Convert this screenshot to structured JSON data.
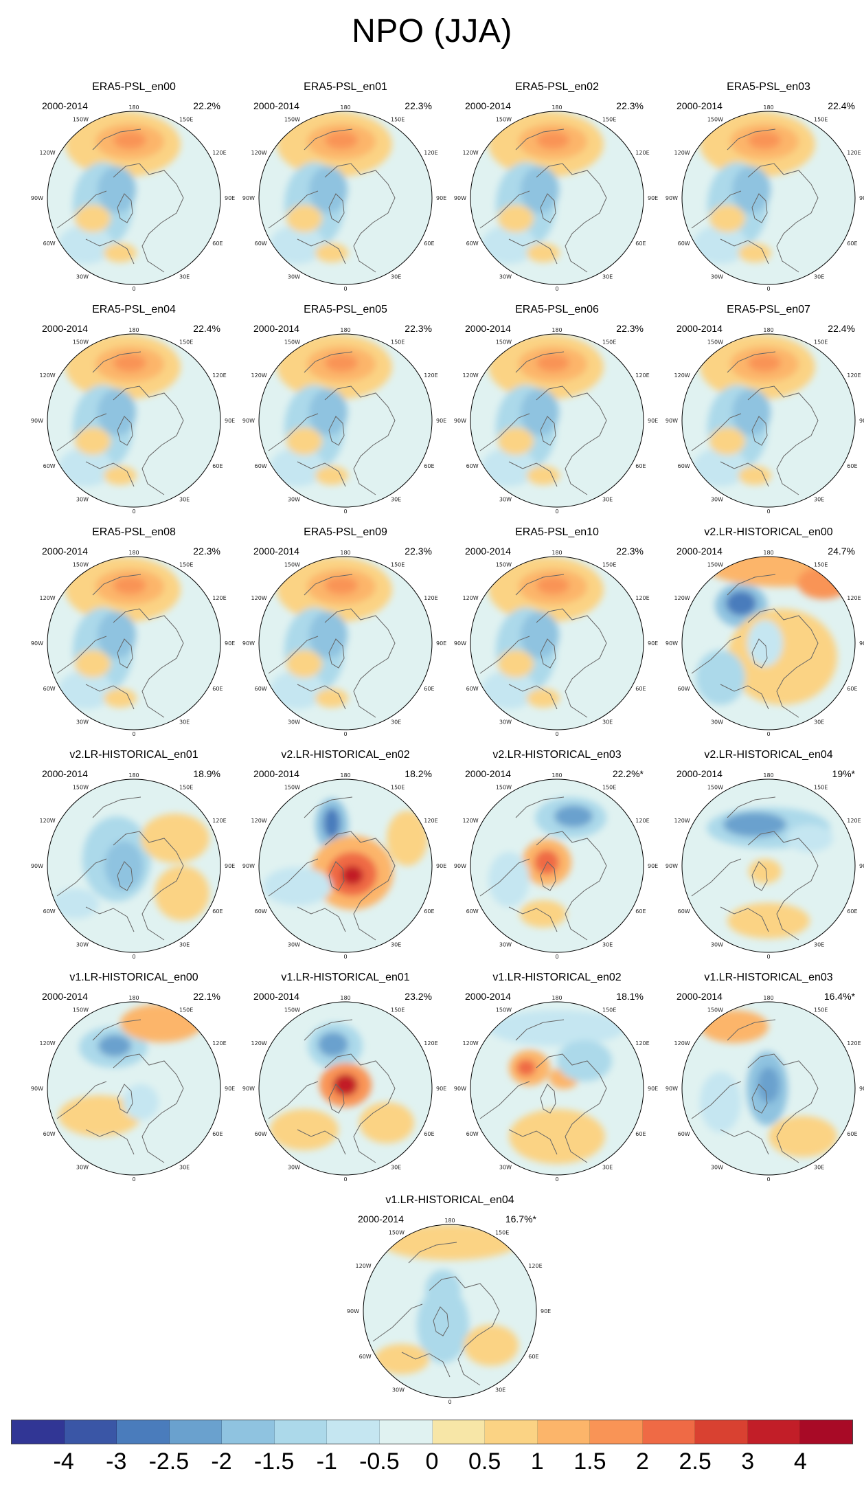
{
  "title": "NPO (JJA)",
  "period": "2000-2014",
  "longitude_labels": [
    "180",
    "150E",
    "120E",
    "90E",
    "60E",
    "30E",
    "0",
    "30W",
    "60W",
    "90W",
    "120W",
    "150W"
  ],
  "panels": [
    {
      "name": "ERA5-PSL_en00",
      "pct": "22.2%",
      "pattern": "era5"
    },
    {
      "name": "ERA5-PSL_en01",
      "pct": "22.3%",
      "pattern": "era5"
    },
    {
      "name": "ERA5-PSL_en02",
      "pct": "22.3%",
      "pattern": "era5"
    },
    {
      "name": "ERA5-PSL_en03",
      "pct": "22.4%",
      "pattern": "era5"
    },
    {
      "name": "ERA5-PSL_en04",
      "pct": "22.4%",
      "pattern": "era5"
    },
    {
      "name": "ERA5-PSL_en05",
      "pct": "22.3%",
      "pattern": "era5"
    },
    {
      "name": "ERA5-PSL_en06",
      "pct": "22.3%",
      "pattern": "era5"
    },
    {
      "name": "ERA5-PSL_en07",
      "pct": "22.4%",
      "pattern": "era5"
    },
    {
      "name": "ERA5-PSL_en08",
      "pct": "22.3%",
      "pattern": "era5"
    },
    {
      "name": "ERA5-PSL_en09",
      "pct": "22.3%",
      "pattern": "era5"
    },
    {
      "name": "ERA5-PSL_en10",
      "pct": "22.3%",
      "pattern": "era5"
    },
    {
      "name": "v2.LR-HISTORICAL_en00",
      "pct": "24.7%",
      "pattern": "v2en00"
    },
    {
      "name": "v2.LR-HISTORICAL_en01",
      "pct": "18.9%",
      "pattern": "v2en01"
    },
    {
      "name": "v2.LR-HISTORICAL_en02",
      "pct": "18.2%",
      "pattern": "v2en02"
    },
    {
      "name": "v2.LR-HISTORICAL_en03",
      "pct": "22.2%*",
      "pattern": "v2en03"
    },
    {
      "name": "v2.LR-HISTORICAL_en04",
      "pct": "19%*",
      "pattern": "v2en04"
    },
    {
      "name": "v1.LR-HISTORICAL_en00",
      "pct": "22.1%",
      "pattern": "v1en00"
    },
    {
      "name": "v1.LR-HISTORICAL_en01",
      "pct": "23.2%",
      "pattern": "v1en01"
    },
    {
      "name": "v1.LR-HISTORICAL_en02",
      "pct": "18.1%",
      "pattern": "v1en02"
    },
    {
      "name": "v1.LR-HISTORICAL_en03",
      "pct": "16.4%*",
      "pattern": "v1en03"
    },
    {
      "name": "v1.LR-HISTORICAL_en04",
      "pct": "16.7%*",
      "pattern": "v1en04"
    }
  ],
  "colorbar": {
    "colors": [
      "#313695",
      "#3a56a6",
      "#4a7cbc",
      "#6aa1ce",
      "#8fc3e0",
      "#acd9ea",
      "#c5e6f1",
      "#e0f2f1",
      "#f7e6a7",
      "#fbd384",
      "#fcb56a",
      "#f99456",
      "#ef6a45",
      "#d94131",
      "#c21e28",
      "#a80a26"
    ],
    "labels": [
      "-4",
      "-3",
      "-2.5",
      "-2",
      "-1.5",
      "-1",
      "-0.5",
      "0",
      "0.5",
      "1",
      "1.5",
      "2",
      "2.5",
      "3",
      "4"
    ]
  }
}
